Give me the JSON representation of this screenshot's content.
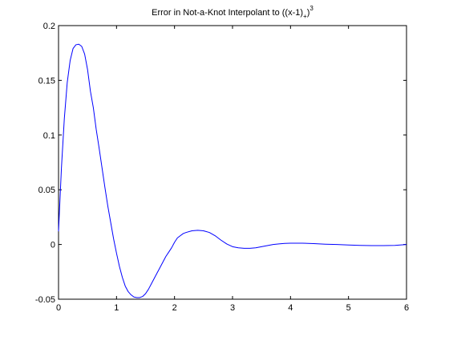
{
  "chart_data": {
    "type": "line",
    "title": {
      "main": "Error in Not-a-Knot Interpolant to ((x-1)",
      "subscript": "+",
      "close": ")",
      "superscript": "3"
    },
    "xlabel": "",
    "ylabel": "",
    "xlim": [
      0,
      6
    ],
    "ylim": [
      -0.05,
      0.2
    ],
    "x_ticks": [
      0,
      1,
      2,
      3,
      4,
      5,
      6
    ],
    "x_tick_labels": [
      "0",
      "1",
      "2",
      "3",
      "4",
      "5",
      "6"
    ],
    "y_ticks": [
      -0.05,
      0,
      0.05,
      0.1,
      0.15,
      0.2
    ],
    "y_tick_labels": [
      "-0.05",
      "0",
      "0.05",
      "0.1",
      "0.15",
      "0.2"
    ],
    "grid": false,
    "line_color": "#0000ff",
    "series": [
      {
        "x": [
          0,
          0.05,
          0.1,
          0.15,
          0.2,
          0.25,
          0.3,
          0.35,
          0.4,
          0.45,
          0.5,
          0.55,
          0.6,
          0.65,
          0.7,
          0.75,
          0.8,
          0.85,
          0.9,
          0.95,
          1.0,
          1.05,
          1.1,
          1.15,
          1.2,
          1.25,
          1.3,
          1.35,
          1.4,
          1.45,
          1.5,
          1.55,
          1.6,
          1.65,
          1.7,
          1.75,
          1.8,
          1.85,
          1.9,
          1.95,
          2.0,
          2.05,
          2.1,
          2.15,
          2.2,
          2.3,
          2.4,
          2.5,
          2.6,
          2.7,
          2.8,
          2.9,
          3.0,
          3.1,
          3.2,
          3.3,
          3.4,
          3.5,
          3.6,
          3.7,
          3.8,
          3.9,
          4.0,
          4.2,
          4.4,
          4.6,
          4.8,
          5.0,
          5.2,
          5.4,
          5.6,
          5.8,
          6.0
        ],
        "y": [
          0.012,
          0.07,
          0.115,
          0.148,
          0.168,
          0.179,
          0.1825,
          0.183,
          0.181,
          0.174,
          0.16,
          0.14,
          0.125,
          0.105,
          0.088,
          0.07,
          0.052,
          0.035,
          0.02,
          0.005,
          -0.008,
          -0.02,
          -0.03,
          -0.038,
          -0.043,
          -0.046,
          -0.048,
          -0.0485,
          -0.0485,
          -0.0475,
          -0.045,
          -0.041,
          -0.036,
          -0.031,
          -0.026,
          -0.021,
          -0.016,
          -0.011,
          -0.007,
          -0.003,
          0.002,
          0.006,
          0.008,
          0.01,
          0.011,
          0.0125,
          0.013,
          0.0125,
          0.011,
          0.008,
          0.004,
          0.0005,
          -0.002,
          -0.003,
          -0.0035,
          -0.0035,
          -0.003,
          -0.002,
          -0.001,
          0.0,
          0.0005,
          0.001,
          0.0012,
          0.0012,
          0.0008,
          0.0003,
          0.0,
          -0.0005,
          -0.0008,
          -0.001,
          -0.001,
          -0.0008,
          0.0
        ]
      }
    ]
  }
}
